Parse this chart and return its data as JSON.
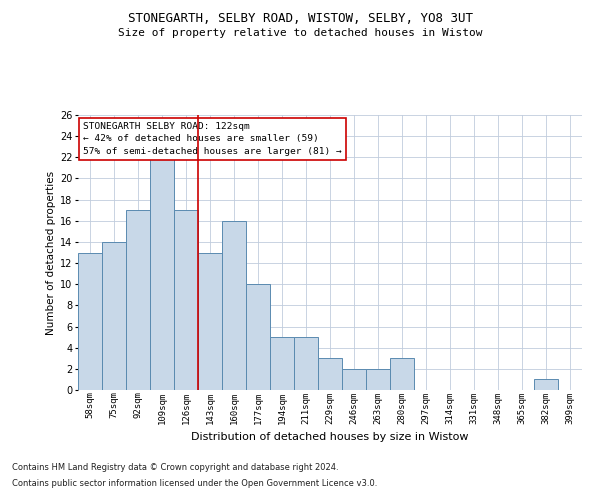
{
  "title1": "STONEGARTH, SELBY ROAD, WISTOW, SELBY, YO8 3UT",
  "title2": "Size of property relative to detached houses in Wistow",
  "xlabel": "Distribution of detached houses by size in Wistow",
  "ylabel": "Number of detached properties",
  "categories": [
    "58sqm",
    "75sqm",
    "92sqm",
    "109sqm",
    "126sqm",
    "143sqm",
    "160sqm",
    "177sqm",
    "194sqm",
    "211sqm",
    "229sqm",
    "246sqm",
    "263sqm",
    "280sqm",
    "297sqm",
    "314sqm",
    "331sqm",
    "348sqm",
    "365sqm",
    "382sqm",
    "399sqm"
  ],
  "values": [
    13,
    14,
    17,
    22,
    17,
    13,
    16,
    10,
    5,
    5,
    3,
    2,
    2,
    3,
    0,
    0,
    0,
    0,
    0,
    1,
    0
  ],
  "bar_color": "#c8d8e8",
  "bar_edge_color": "#5a8ab0",
  "vline_x": 4.5,
  "vline_color": "#cc0000",
  "annotation_title": "STONEGARTH SELBY ROAD: 122sqm",
  "annotation_line1": "← 42% of detached houses are smaller (59)",
  "annotation_line2": "57% of semi-detached houses are larger (81) →",
  "annotation_box_color": "#ffffff",
  "annotation_box_edge": "#cc0000",
  "ylim": [
    0,
    26
  ],
  "yticks": [
    0,
    2,
    4,
    6,
    8,
    10,
    12,
    14,
    16,
    18,
    20,
    22,
    24,
    26
  ],
  "footer1": "Contains HM Land Registry data © Crown copyright and database right 2024.",
  "footer2": "Contains public sector information licensed under the Open Government Licence v3.0.",
  "bg_color": "#ffffff",
  "grid_color": "#c0ccdd",
  "fig_width": 6.0,
  "fig_height": 5.0
}
